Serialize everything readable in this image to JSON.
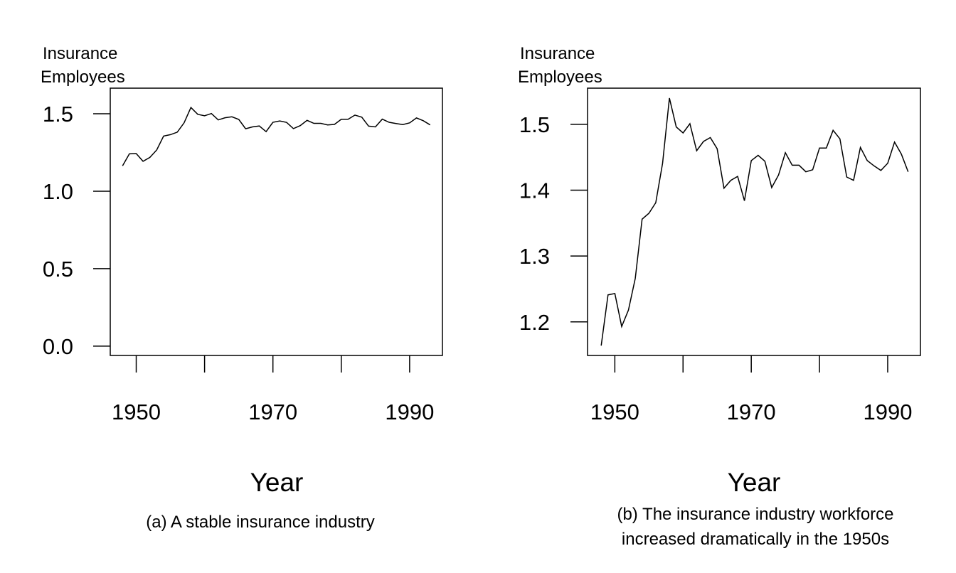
{
  "chart_data": [
    {
      "type": "line",
      "panel": "a",
      "ylabel": "Insurance\nEmployees",
      "ylabel_lines": [
        "Insurance",
        "Employees"
      ],
      "xlabel": "Year",
      "caption_lines": [
        "(a) A stable insurance industry"
      ],
      "xlim": [
        1946.2,
        1994.8
      ],
      "ylim": [
        -0.06,
        1.665
      ],
      "xticks": [
        1950,
        1960,
        1970,
        1980,
        1990
      ],
      "xtick_labels": [
        "1950",
        "",
        "1970",
        "",
        "1990"
      ],
      "yticks": [
        0.0,
        0.5,
        1.0,
        1.5
      ],
      "ytick_labels": [
        "0.0",
        "0.5",
        "1.0",
        "1.5"
      ],
      "grid": false,
      "line_color": "#000000"
    },
    {
      "type": "line",
      "panel": "b",
      "ylabel_lines": [
        "Insurance",
        "Employees"
      ],
      "xlabel": "Year",
      "caption_lines": [
        "(b) The insurance industry workforce",
        "increased dramatically in the 1950s"
      ],
      "xlim": [
        1946.0,
        1994.8
      ],
      "ylim": [
        1.149,
        1.555
      ],
      "xticks": [
        1950,
        1960,
        1970,
        1980,
        1990
      ],
      "xtick_labels": [
        "1950",
        "",
        "1970",
        "",
        "1990"
      ],
      "yticks": [
        1.2,
        1.3,
        1.4,
        1.5
      ],
      "ytick_labels": [
        "1.2",
        "1.3",
        "1.4",
        "1.5"
      ],
      "grid": false,
      "line_color": "#000000"
    }
  ],
  "series": {
    "x": [
      1948,
      1949,
      1950,
      1951,
      1952,
      1953,
      1954,
      1955,
      1956,
      1957,
      1958,
      1959,
      1960,
      1961,
      1962,
      1963,
      1964,
      1965,
      1966,
      1967,
      1968,
      1969,
      1970,
      1971,
      1972,
      1973,
      1974,
      1975,
      1976,
      1977,
      1978,
      1979,
      1980,
      1981,
      1982,
      1983,
      1984,
      1985,
      1986,
      1987,
      1988,
      1989,
      1990,
      1991,
      1992,
      1993
    ],
    "y": [
      1.164,
      1.241,
      1.243,
      1.193,
      1.218,
      1.266,
      1.356,
      1.365,
      1.381,
      1.441,
      1.54,
      1.496,
      1.487,
      1.501,
      1.46,
      1.474,
      1.48,
      1.463,
      1.403,
      1.415,
      1.421,
      1.384,
      1.445,
      1.453,
      1.444,
      1.404,
      1.423,
      1.457,
      1.438,
      1.438,
      1.428,
      1.431,
      1.464,
      1.464,
      1.491,
      1.478,
      1.42,
      1.415,
      1.465,
      1.445,
      1.437,
      1.43,
      1.441,
      1.473,
      1.455,
      1.428
    ]
  }
}
